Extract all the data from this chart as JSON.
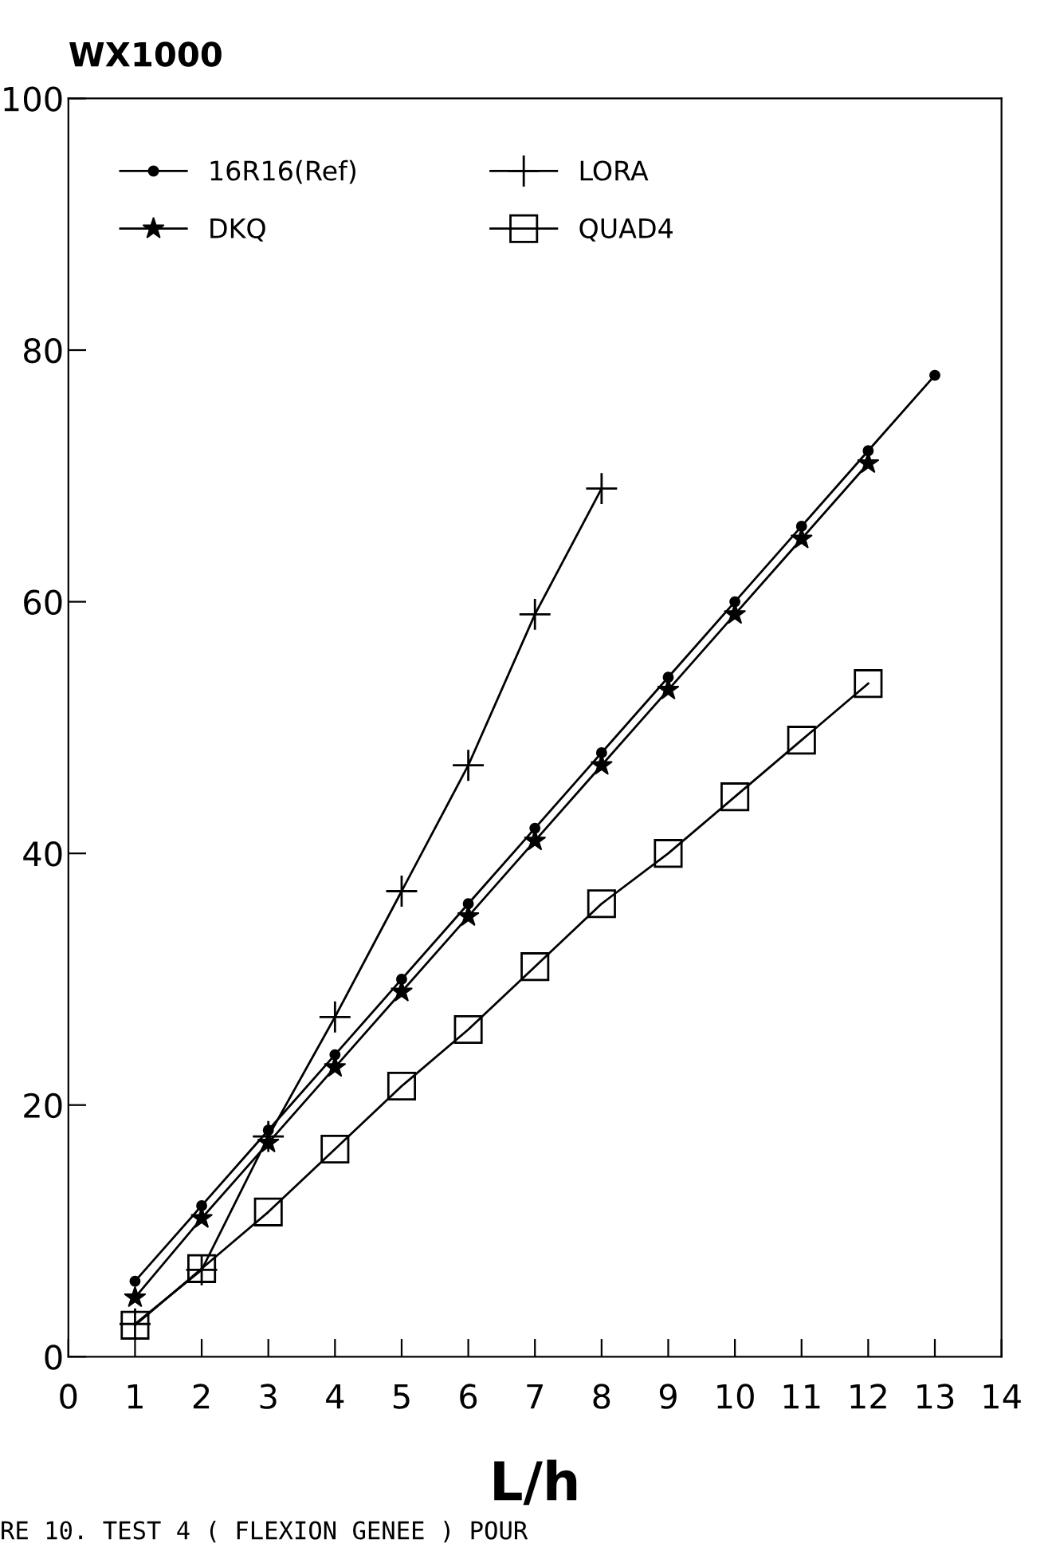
{
  "chart_data": {
    "type": "line",
    "ylabel": "WX1000",
    "xlabel": "L/h",
    "x": [
      1,
      2,
      3,
      4,
      5,
      6,
      7,
      8,
      9,
      10,
      11,
      12,
      13
    ],
    "series": [
      {
        "name": "16R16(Ref)",
        "color": "#000000",
        "marker": "circle",
        "values": [
          6,
          12,
          18,
          24,
          30,
          36,
          42,
          48,
          54,
          60,
          66,
          72,
          78
        ]
      },
      {
        "name": "DKQ",
        "color": "#000000",
        "marker": "star",
        "values": [
          4.7,
          11,
          17,
          23,
          29,
          35,
          41,
          47,
          53,
          59,
          65,
          71,
          null
        ]
      },
      {
        "name": "LORA",
        "color": "#000000",
        "marker": "cross",
        "values": [
          2.6,
          6.9,
          17.5,
          27,
          37,
          47,
          59,
          69,
          null,
          null,
          null,
          null,
          null
        ]
      },
      {
        "name": "QUAD4",
        "color": "#000000",
        "marker": "square",
        "values": [
          2.5,
          7,
          11.5,
          16.5,
          21.5,
          26,
          31,
          36,
          40,
          44.5,
          49,
          53.5,
          null
        ]
      }
    ],
    "xlim": [
      0,
      14
    ],
    "xticks": [
      0,
      1,
      2,
      3,
      4,
      5,
      6,
      7,
      8,
      9,
      10,
      11,
      12,
      13,
      14
    ],
    "ylim": [
      0,
      100
    ],
    "yticks": [
      0,
      20,
      40,
      60,
      80,
      100
    ],
    "grid": false,
    "legend": "top left",
    "line_style": "solid",
    "annotations": [
      "RE 10. TEST 4 ( FLEXION GENEE ) POUR"
    ]
  }
}
